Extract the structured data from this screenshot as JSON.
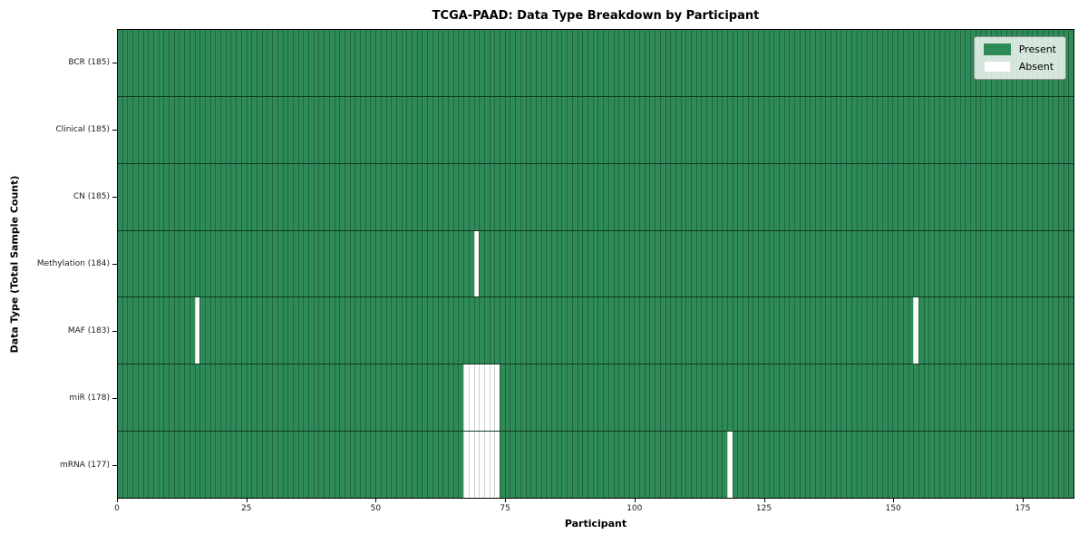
{
  "chart_data": {
    "type": "heatmap",
    "title": "TCGA-PAAD: Data Type Breakdown by Participant",
    "xlabel": "Participant",
    "ylabel": "Data Type (Total Sample Count)",
    "x_ticks": [
      0,
      25,
      50,
      75,
      100,
      125,
      150,
      175
    ],
    "x_range": [
      0,
      185
    ],
    "n_participants": 185,
    "grid": "cell-edges",
    "legend_position": "upper right",
    "colors": {
      "present": "#2e8b57",
      "absent": "#ffffff"
    },
    "rows": [
      {
        "label": "BCR (185)",
        "name": "BCR",
        "total": 185,
        "absent_participants": []
      },
      {
        "label": "Clinical (185)",
        "name": "Clinical",
        "total": 185,
        "absent_participants": []
      },
      {
        "label": "CN (185)",
        "name": "CN",
        "total": 185,
        "absent_participants": []
      },
      {
        "label": "Methylation (184)",
        "name": "Methylation",
        "total": 184,
        "absent_participants": [
          69
        ]
      },
      {
        "label": "MAF (183)",
        "name": "MAF",
        "total": 183,
        "absent_participants": [
          15,
          154
        ]
      },
      {
        "label": "miR (178)",
        "name": "miR",
        "total": 178,
        "absent_participants": [
          67,
          68,
          69,
          70,
          71,
          72,
          73
        ]
      },
      {
        "label": "mRNA (177)",
        "name": "mRNA",
        "total": 177,
        "absent_participants": [
          67,
          68,
          69,
          70,
          71,
          72,
          73,
          118
        ]
      }
    ],
    "legend": [
      {
        "label": "Present",
        "color": "#2e8b57"
      },
      {
        "label": "Absent",
        "color": "#ffffff"
      }
    ]
  }
}
